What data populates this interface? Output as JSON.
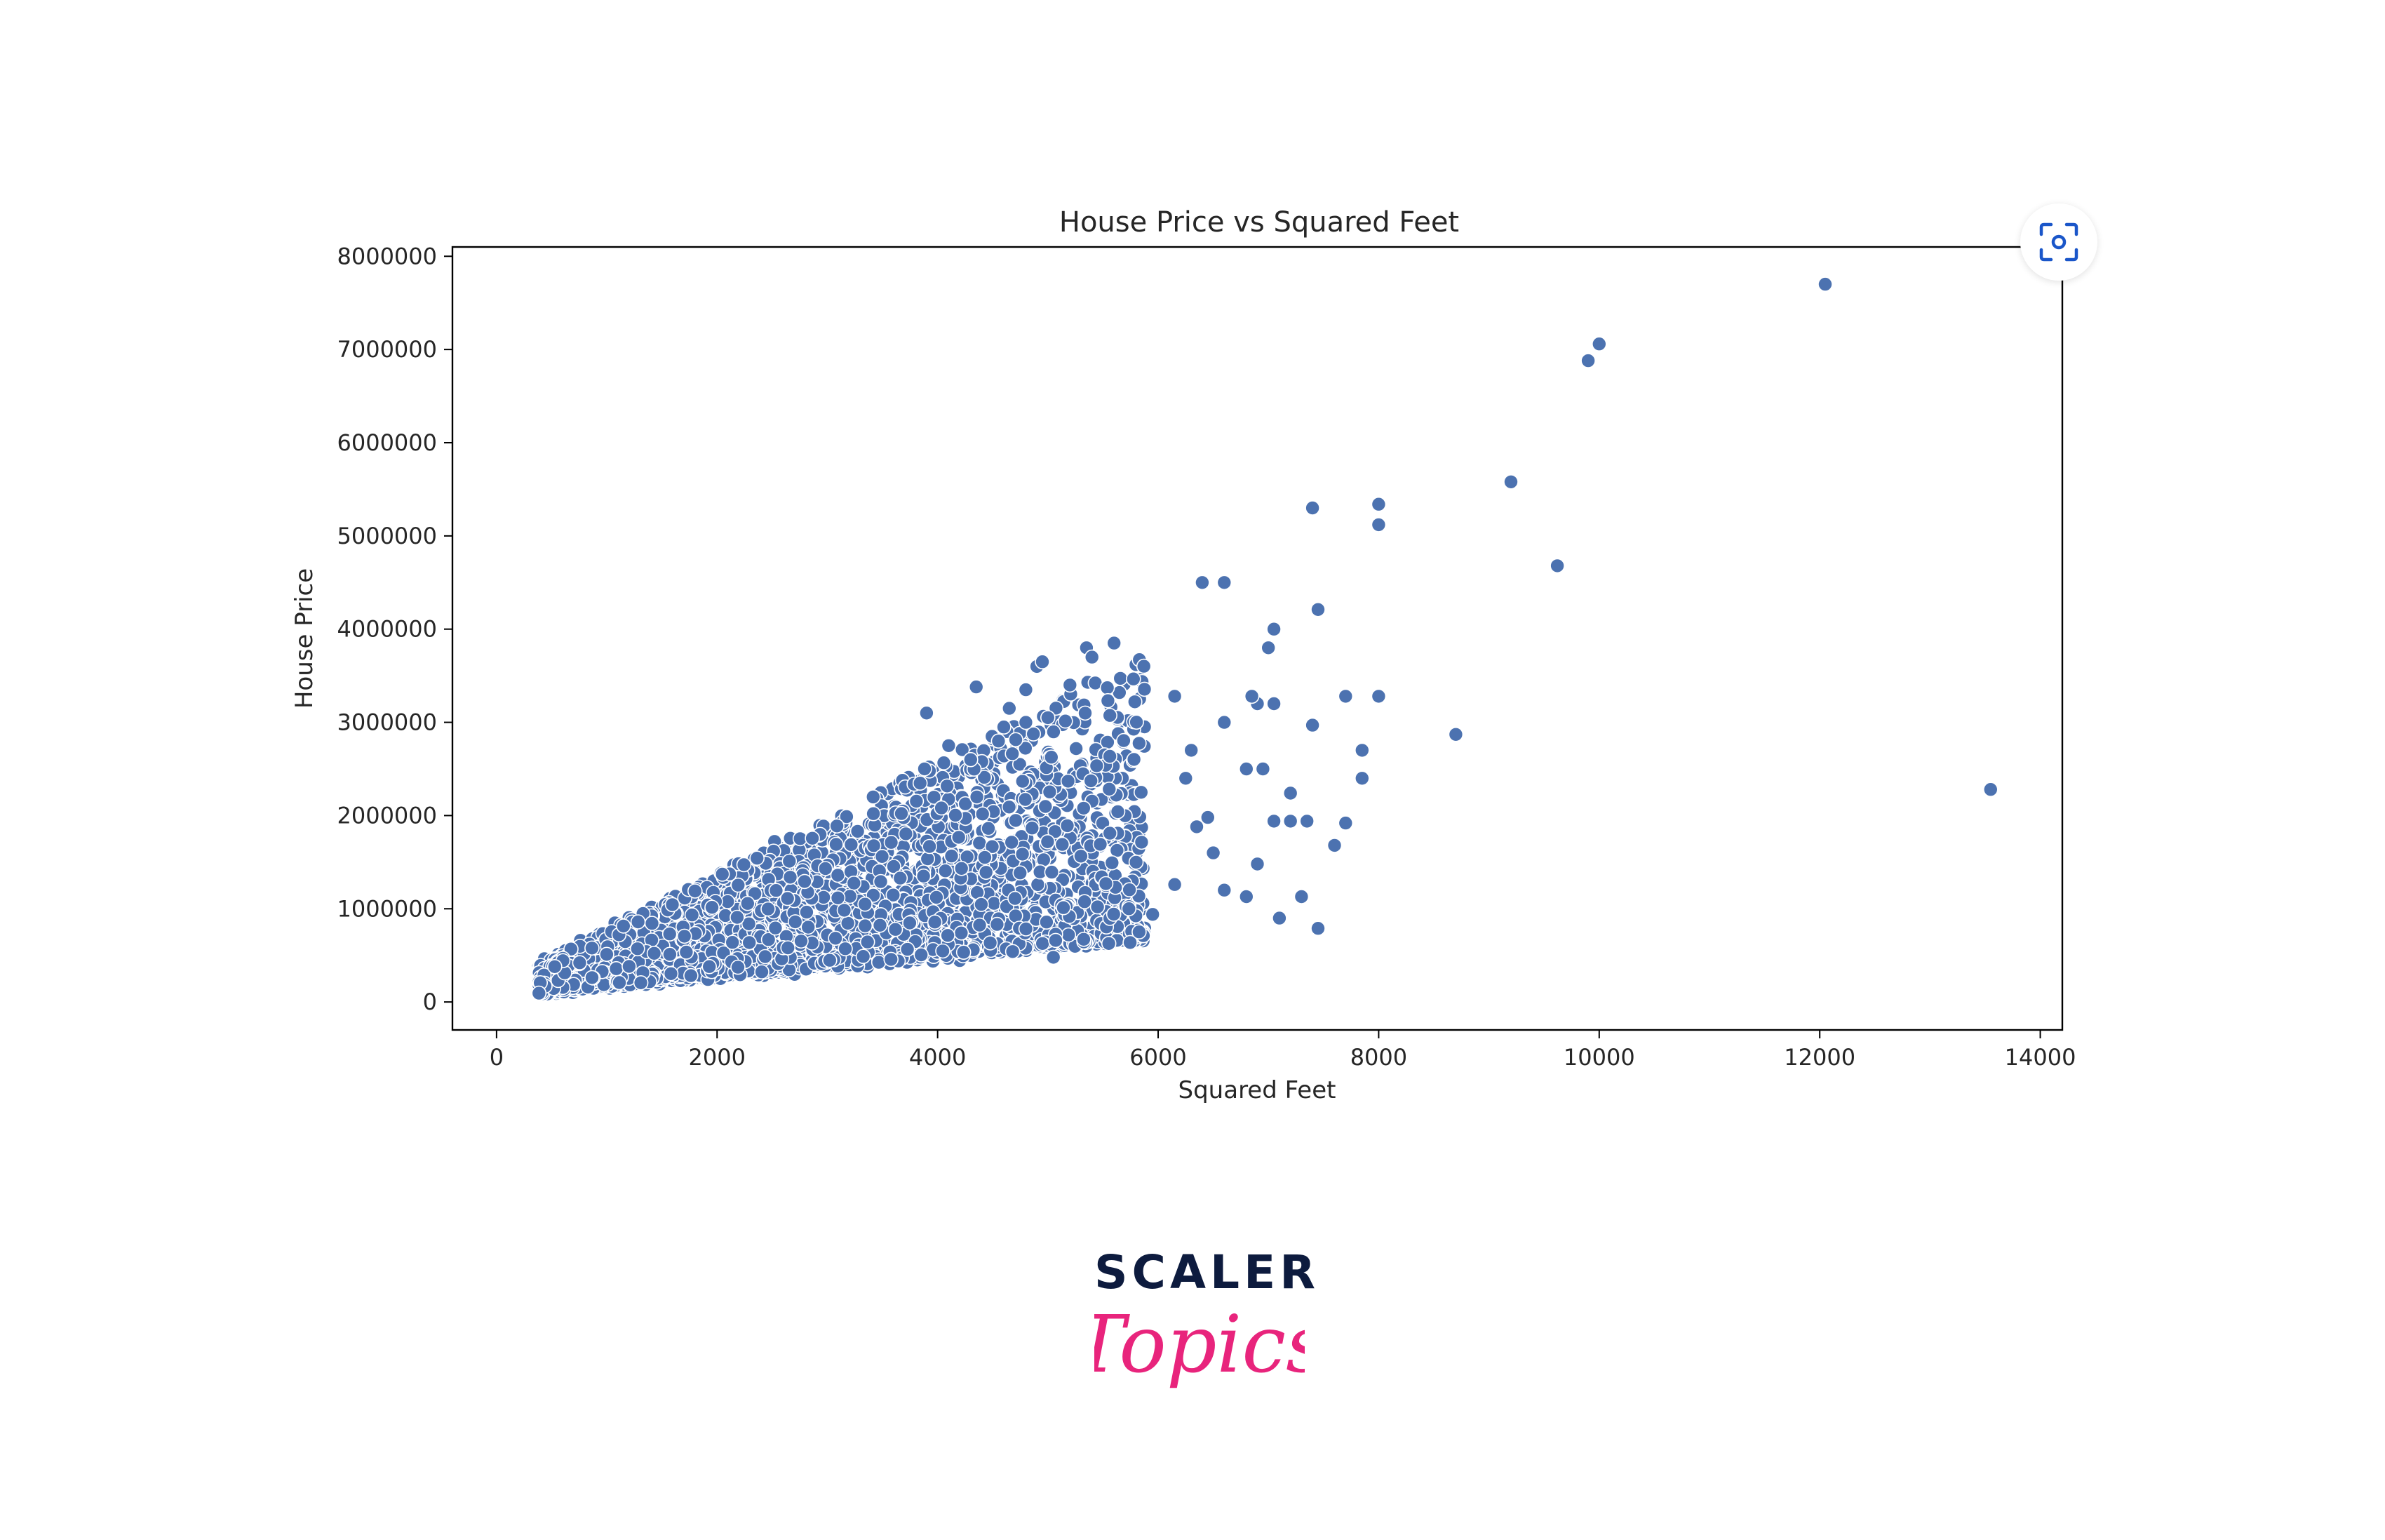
{
  "chart_data": {
    "type": "scatter",
    "title": "House Price vs Squared Feet",
    "xlabel": "Squared Feet",
    "ylabel": "House Price",
    "xlim": [
      -400,
      14200
    ],
    "ylim": [
      -300000,
      8100000
    ],
    "x_ticks": [
      0,
      2000,
      4000,
      6000,
      8000,
      10000,
      12000,
      14000
    ],
    "x_tick_labels": [
      "0",
      "2000",
      "4000",
      "6000",
      "8000",
      "10000",
      "12000",
      "14000"
    ],
    "y_ticks": [
      0,
      1000000,
      2000000,
      3000000,
      4000000,
      5000000,
      6000000,
      7000000,
      8000000
    ],
    "y_tick_labels": [
      "0",
      "1000000",
      "2000000",
      "3000000",
      "4000000",
      "5000000",
      "6000000",
      "7000000",
      "8000000"
    ],
    "grid": false,
    "marker_color": "#4c72b0",
    "marker_edge_color": "#ffffff",
    "points": [
      [
        12050,
        7700000
      ],
      [
        10000,
        7060000
      ],
      [
        9900,
        6880000
      ],
      [
        9200,
        5580000
      ],
      [
        8000,
        5340000
      ],
      [
        7400,
        5300000
      ],
      [
        8000,
        5120000
      ],
      [
        9620,
        4680000
      ],
      [
        6400,
        4500000
      ],
      [
        6600,
        4500000
      ],
      [
        7450,
        4210000
      ],
      [
        7050,
        4000000
      ],
      [
        7000,
        3800000
      ],
      [
        5600,
        3850000
      ],
      [
        5350,
        3800000
      ],
      [
        5400,
        3700000
      ],
      [
        8000,
        3280000
      ],
      [
        7700,
        3280000
      ],
      [
        6900,
        3200000
      ],
      [
        6850,
        3280000
      ],
      [
        6150,
        3280000
      ],
      [
        7050,
        3200000
      ],
      [
        8700,
        2870000
      ],
      [
        7850,
        2700000
      ],
      [
        7400,
        2970000
      ],
      [
        6600,
        3000000
      ],
      [
        7850,
        2400000
      ],
      [
        7200,
        2240000
      ],
      [
        6950,
        2500000
      ],
      [
        6800,
        2500000
      ],
      [
        6300,
        2700000
      ],
      [
        6250,
        2400000
      ],
      [
        7050,
        1940000
      ],
      [
        7350,
        1940000
      ],
      [
        7200,
        1940000
      ],
      [
        7600,
        1680000
      ],
      [
        7700,
        1920000
      ],
      [
        6900,
        1480000
      ],
      [
        6800,
        1130000
      ],
      [
        7300,
        1130000
      ],
      [
        7100,
        900000
      ],
      [
        7450,
        790000
      ],
      [
        13550,
        2280000
      ],
      [
        6500,
        1600000
      ],
      [
        6350,
        1880000
      ],
      [
        6600,
        1200000
      ],
      [
        6450,
        1980000
      ],
      [
        6150,
        1260000
      ],
      [
        5800,
        1500000
      ],
      [
        5950,
        940000
      ],
      [
        5450,
        1020000
      ],
      [
        5050,
        480000
      ],
      [
        4900,
        3600000
      ],
      [
        4950,
        3650000
      ],
      [
        5200,
        3400000
      ],
      [
        4800,
        3350000
      ],
      [
        4350,
        3380000
      ],
      [
        4650,
        3150000
      ],
      [
        3900,
        3100000
      ],
      [
        4100,
        2750000
      ],
      [
        4300,
        2600000
      ],
      [
        4600,
        2950000
      ],
      [
        4800,
        3000000
      ],
      [
        5000,
        3050000
      ]
    ],
    "cloud_seed": 7
  },
  "lens_button": {
    "icon": "visual-search-icon"
  },
  "logo": {
    "word": "SCALER",
    "script": "Topics",
    "word_color": "#0d1b3e",
    "script_color": "#e8247c"
  }
}
